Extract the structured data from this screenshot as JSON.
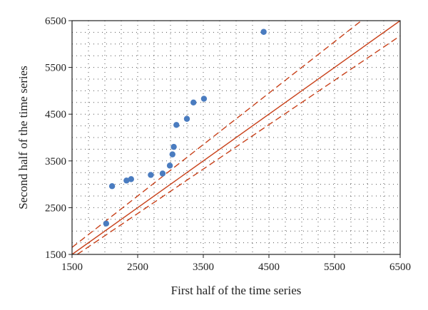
{
  "chart_data": {
    "type": "scatter",
    "title": "",
    "xlabel": "First half of the time series",
    "ylabel": "Second half of the time series",
    "xlim": [
      1500,
      6500
    ],
    "ylim": [
      1500,
      6500
    ],
    "x_ticks": [
      1500,
      2500,
      3500,
      4500,
      5500,
      6500
    ],
    "y_ticks": [
      1500,
      2500,
      3500,
      4500,
      5500,
      6500
    ],
    "tick_labels": {
      "x": [
        "1500",
        "2500",
        "3500",
        "4500",
        "5500",
        "6500"
      ],
      "y": [
        "1500",
        "2500",
        "3500",
        "4500",
        "5500",
        "6500"
      ]
    },
    "grid": "dotted",
    "points": [
      {
        "x": 2020,
        "y": 2160
      },
      {
        "x": 2110,
        "y": 2960
      },
      {
        "x": 2330,
        "y": 3080
      },
      {
        "x": 2400,
        "y": 3110
      },
      {
        "x": 2700,
        "y": 3200
      },
      {
        "x": 2880,
        "y": 3230
      },
      {
        "x": 2990,
        "y": 3400
      },
      {
        "x": 3030,
        "y": 3640
      },
      {
        "x": 3050,
        "y": 3800
      },
      {
        "x": 3090,
        "y": 4270
      },
      {
        "x": 3250,
        "y": 4400
      },
      {
        "x": 3350,
        "y": 4750
      },
      {
        "x": 3510,
        "y": 4830
      },
      {
        "x": 4420,
        "y": 6260
      }
    ],
    "lines": [
      {
        "style": "solid",
        "slope": 1.0,
        "intercept": 0
      },
      {
        "style": "dashed",
        "slope": 1.1,
        "intercept": 0
      },
      {
        "style": "dashed",
        "slope": 0.95,
        "intercept": 0
      }
    ],
    "colors": {
      "points": "#4a7cc0",
      "lines": "#c8411a",
      "grid": "#555555",
      "axis": "#222222"
    }
  }
}
